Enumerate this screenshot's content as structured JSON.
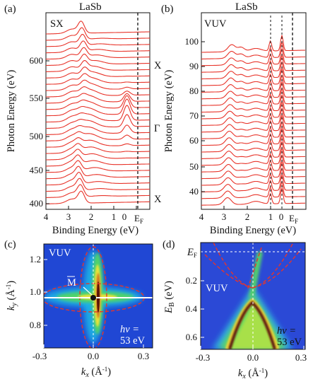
{
  "panel_a": {
    "tag": "(a)",
    "material": "LaSb",
    "mode": "SX",
    "x_ticks": [
      "4",
      "3",
      "2",
      "1",
      "0"
    ],
    "ef_tick": "E",
    "ef_sub": "F",
    "xlabel": "Binding Energy (eV)",
    "y_ticks": [
      "400",
      "450",
      "500",
      "550",
      "600"
    ],
    "ylabel": "Photon Energy (eV)",
    "side_labels": [
      "X",
      "Γ",
      "X"
    ]
  },
  "panel_b": {
    "tag": "(b)",
    "material": "LaSb",
    "mode": "VUV",
    "x_ticks": [
      "4",
      "3",
      "2",
      "1",
      "0"
    ],
    "ef_tick": "E",
    "ef_sub": "F",
    "xlabel": "Binding Energy (eV)",
    "y_ticks": [
      "40",
      "50",
      "60",
      "70",
      "80",
      "90",
      "100"
    ],
    "ylabel": "Photon Energy (eV)"
  },
  "panel_c": {
    "tag": "(c)",
    "mode": "VUV",
    "point_label": "M",
    "x_ticks": [
      "-0.3",
      "0.0",
      "0.3"
    ],
    "xlabel_var": "k",
    "xlabel_sub": "x",
    "xlabel_unit": " (Å",
    "xlabel_exp": "-1",
    "xlabel_close": ")",
    "y_ticks": [
      "0.8",
      "1.0",
      "1.2"
    ],
    "ylabel_var": "k",
    "ylabel_sub": "y",
    "ylabel_unit": " (Å",
    "ylabel_exp": "-1",
    "ylabel_close": ")",
    "hv_line1": "hν =",
    "hv_line2": "53 eV"
  },
  "panel_d": {
    "tag": "(d)",
    "mode": "VUV",
    "ef_label": "E",
    "ef_sub": "F",
    "x_ticks": [
      "-0.3",
      "0.0",
      "0.3"
    ],
    "xlabel_var": "k",
    "xlabel_sub": "x",
    "xlabel_unit": " (Å",
    "xlabel_exp": "-1",
    "xlabel_close": ")",
    "y_ticks": [
      "0.2",
      "0.4",
      "0.6"
    ],
    "ylabel_var": "E",
    "ylabel_sub": "B",
    "ylabel_unit": " (eV)",
    "hv_line1": "hν =",
    "hv_line2": "53 eV"
  },
  "colors": {
    "spectra": "#e8342a",
    "dashed": "#111111",
    "map_bg": "#1c3fd0",
    "map_hi": "#5c1508"
  }
}
